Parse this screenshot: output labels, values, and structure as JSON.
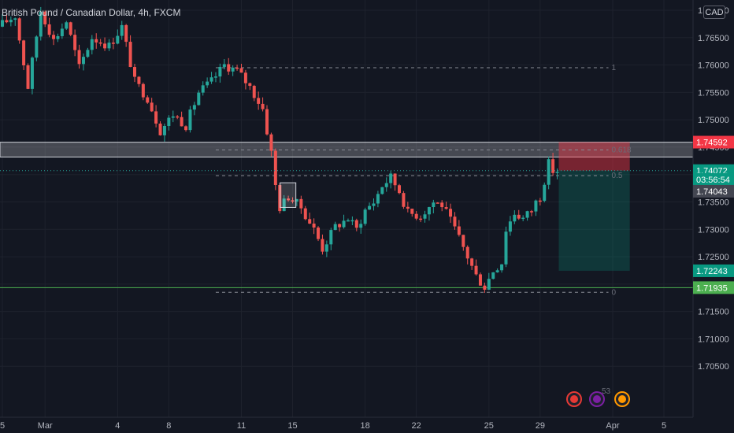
{
  "header": {
    "symbol_title": "British Pound / Canadian Dollar, 4h, FXCM",
    "currency_button": "CAD"
  },
  "colors": {
    "background": "#131722",
    "up_candle": "#26a69a",
    "down_candle": "#ef5350",
    "grid": "#1e222d",
    "support_line": "#4caf50",
    "resistance_zone": "#ffffff",
    "stop_zone": "#f23645",
    "target_zone": "#089981"
  },
  "chart_data": {
    "type": "candlestick",
    "symbol": "GBPCAD",
    "timeframe": "4h",
    "ylim": [
      1.7,
      1.77
    ],
    "y_ticks": [
      "1.70500",
      "1.71000",
      "1.71500",
      "1.72000",
      "1.72500",
      "1.73000",
      "1.73500",
      "1.74000",
      "1.74500",
      "1.75000",
      "1.75500",
      "1.76000",
      "1.76500",
      "1.77000"
    ],
    "x_ticks": [
      {
        "label": "5",
        "pos": 0
      },
      {
        "label": "Mar",
        "pos": 10
      },
      {
        "label": "4",
        "pos": 27
      },
      {
        "label": "8",
        "pos": 39
      },
      {
        "label": "11",
        "pos": 56
      },
      {
        "label": "15",
        "pos": 68
      },
      {
        "label": "18",
        "pos": 85
      },
      {
        "label": "22",
        "pos": 97
      },
      {
        "label": "25",
        "pos": 114
      },
      {
        "label": "29",
        "pos": 126
      },
      {
        "label": "Apr",
        "pos": 143
      },
      {
        "label": "5",
        "pos": 155
      }
    ],
    "path": [
      [
        0,
        1.767
      ],
      [
        4,
        1.769
      ],
      [
        7,
        1.756
      ],
      [
        10,
        1.77
      ],
      [
        13,
        1.7645
      ],
      [
        16,
        1.768
      ],
      [
        19,
        1.7595
      ],
      [
        22,
        1.765
      ],
      [
        26,
        1.7635
      ],
      [
        29,
        1.767
      ],
      [
        32,
        1.757
      ],
      [
        35,
        1.754
      ],
      [
        37,
        1.75
      ],
      [
        38,
        1.748
      ],
      [
        41,
        1.751
      ],
      [
        44,
        1.749
      ],
      [
        47,
        1.755
      ],
      [
        50,
        1.757
      ],
      [
        53,
        1.76
      ],
      [
        56,
        1.759
      ],
      [
        59,
        1.756
      ],
      [
        62,
        1.752
      ],
      [
        63,
        1.748
      ],
      [
        64,
        1.744
      ],
      [
        65,
        1.738
      ],
      [
        66,
        1.734
      ],
      [
        68,
        1.736
      ],
      [
        71,
        1.734
      ],
      [
        74,
        1.73
      ],
      [
        76,
        1.7265
      ],
      [
        79,
        1.7305
      ],
      [
        82,
        1.732
      ],
      [
        84,
        1.73
      ],
      [
        86,
        1.7335
      ],
      [
        88,
        1.735
      ],
      [
        90,
        1.738
      ],
      [
        92,
        1.7395
      ],
      [
        94,
        1.737
      ],
      [
        96,
        1.733
      ],
      [
        99,
        1.7325
      ],
      [
        102,
        1.735
      ],
      [
        104,
        1.7345
      ],
      [
        107,
        1.73
      ],
      [
        110,
        1.725
      ],
      [
        112,
        1.7215
      ],
      [
        114,
        1.7195
      ],
      [
        116,
        1.7225
      ],
      [
        118,
        1.724
      ],
      [
        119,
        1.73
      ],
      [
        121,
        1.733
      ],
      [
        123,
        1.732
      ],
      [
        125,
        1.7335
      ],
      [
        126,
        1.735
      ],
      [
        127,
        1.736
      ],
      [
        128,
        1.739
      ],
      [
        129,
        1.742
      ],
      [
        130,
        1.7407
      ]
    ],
    "price_scale_tags": [
      {
        "label": "1.74592",
        "value": 1.74592,
        "kind": "stop"
      },
      {
        "label": "1.74072",
        "value": 1.74072,
        "kind": "last"
      },
      {
        "label": "03:56:54",
        "value": 1.73912,
        "kind": "countdown"
      },
      {
        "label": "1.74043",
        "value": 1.73695,
        "kind": "marker"
      },
      {
        "label": "1.72243",
        "value": 1.72243,
        "kind": "target"
      },
      {
        "label": "1.71935",
        "value": 1.71935,
        "kind": "support"
      }
    ],
    "fib_levels": [
      {
        "label": "1",
        "value": 1.7595
      },
      {
        "label": "0.618",
        "value": 1.7445
      },
      {
        "label": "0.5",
        "value": 1.7398
      },
      {
        "label": "0",
        "value": 1.7185
      }
    ],
    "resistance_zone": [
      1.7432,
      1.7459
    ],
    "support_level": 1.71935,
    "position": {
      "entry": 1.74072,
      "stop": 1.74592,
      "target": 1.72243
    },
    "annotations": [
      "53"
    ]
  }
}
